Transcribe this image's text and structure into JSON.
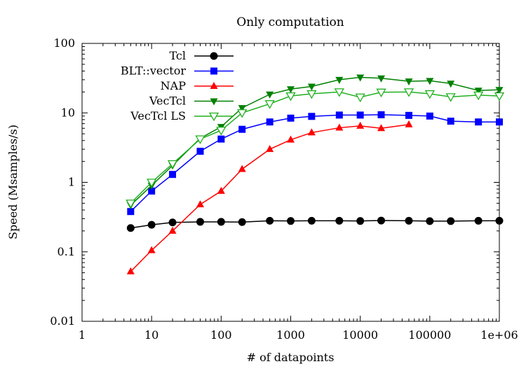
{
  "chart_data": {
    "type": "line",
    "title": "Only computation",
    "xlabel": "# of datapoints",
    "ylabel": "Speed (Msamples/s)",
    "x_scale": "log",
    "y_scale": "log",
    "xlim": [
      1,
      1000000
    ],
    "ylim": [
      0.01,
      100
    ],
    "x_ticks": [
      {
        "value": 1,
        "label": "1"
      },
      {
        "value": 10,
        "label": "10"
      },
      {
        "value": 100,
        "label": "100"
      },
      {
        "value": 1000,
        "label": "1000"
      },
      {
        "value": 10000,
        "label": "10000"
      },
      {
        "value": 100000,
        "label": "100000"
      },
      {
        "value": 1000000,
        "label": "1e+06"
      }
    ],
    "y_ticks": [
      {
        "value": 0.01,
        "label": "0.01"
      },
      {
        "value": 0.1,
        "label": "0.1"
      },
      {
        "value": 1,
        "label": "1"
      },
      {
        "value": 10,
        "label": "10"
      },
      {
        "value": 100,
        "label": "100"
      }
    ],
    "grid": false,
    "legend_position": "top-left",
    "series": [
      {
        "name": "Tcl",
        "color": "#000000",
        "marker": "circle-filled",
        "x": [
          5,
          10,
          20,
          50,
          100,
          200,
          500,
          1000,
          2000,
          5000,
          10000,
          20000,
          50000,
          100000,
          200000,
          500000,
          1000000
        ],
        "y": [
          0.22,
          0.245,
          0.265,
          0.27,
          0.27,
          0.268,
          0.28,
          0.278,
          0.28,
          0.28,
          0.278,
          0.282,
          0.28,
          0.277,
          0.277,
          0.28,
          0.28
        ]
      },
      {
        "name": "BLT::vector",
        "color": "#0000ff",
        "marker": "square-filled",
        "x": [
          5,
          10,
          20,
          50,
          100,
          200,
          500,
          1000,
          2000,
          5000,
          10000,
          20000,
          50000,
          100000,
          200000,
          500000,
          1000000
        ],
        "y": [
          0.38,
          0.75,
          1.3,
          2.8,
          4.2,
          5.8,
          7.4,
          8.4,
          8.9,
          9.3,
          9.3,
          9.4,
          9.2,
          9.0,
          7.6,
          7.4,
          7.4
        ]
      },
      {
        "name": "NAP",
        "color": "#ff0000",
        "marker": "triangle-filled",
        "x": [
          5,
          10,
          20,
          50,
          100,
          200,
          500,
          1000,
          2000,
          5000,
          10000,
          20000,
          50000
        ],
        "y": [
          0.052,
          0.105,
          0.2,
          0.48,
          0.75,
          1.55,
          3.0,
          4.1,
          5.2,
          6.1,
          6.5,
          6.0,
          6.8
        ]
      },
      {
        "name": "VecTcl",
        "color": "#008000",
        "marker": "triangle-down-filled",
        "x": [
          5,
          10,
          20,
          50,
          100,
          200,
          500,
          1000,
          2000,
          5000,
          10000,
          20000,
          50000,
          100000,
          200000,
          500000,
          1000000
        ],
        "y": [
          0.47,
          0.9,
          1.75,
          4.3,
          6.3,
          11.8,
          18.5,
          22.0,
          24.0,
          30.0,
          32.5,
          31.5,
          28.5,
          29.0,
          26.5,
          21.0,
          21.5
        ]
      },
      {
        "name": "VecTcl LS",
        "color": "#20b020",
        "marker": "triangle-down-open",
        "x": [
          5,
          10,
          20,
          50,
          100,
          200,
          500,
          1000,
          2000,
          5000,
          10000,
          20000,
          50000,
          100000,
          200000,
          500000,
          1000000
        ],
        "y": [
          0.5,
          1.0,
          1.85,
          4.2,
          5.6,
          10.0,
          13.5,
          17.5,
          18.8,
          20.0,
          16.8,
          19.8,
          20.0,
          18.8,
          17.0,
          18.0,
          17.5
        ]
      }
    ]
  }
}
